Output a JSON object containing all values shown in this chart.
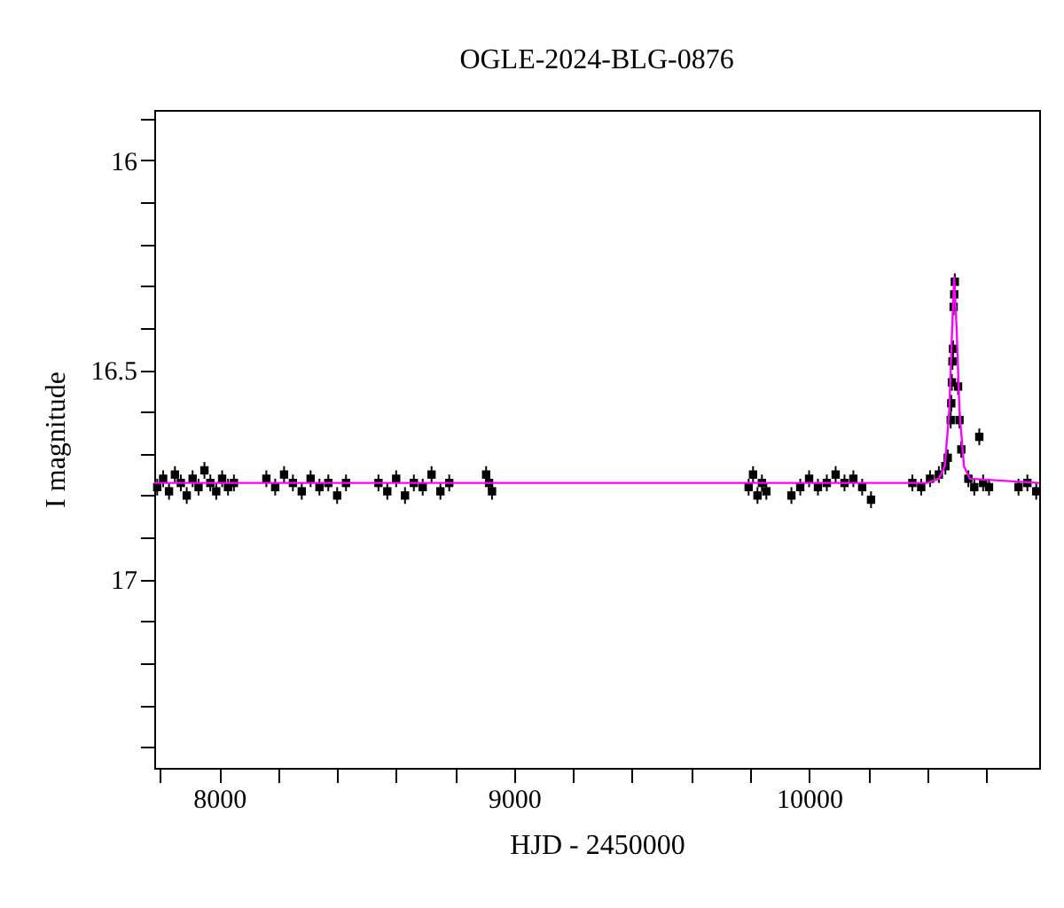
{
  "chart_data": {
    "type": "scatter",
    "title": "OGLE-2024-BLG-0876",
    "xlabel": "HJD - 2450000",
    "ylabel": "I magnitude",
    "xlim": [
      7780,
      10780
    ],
    "ylim": [
      17.45,
      15.88
    ],
    "xticks": [
      {
        "value": 7800,
        "label": null
      },
      8000,
      {
        "value": 8200,
        "label": null
      },
      {
        "value": 8400,
        "label": null
      },
      {
        "value": 8600,
        "label": null
      },
      {
        "value": 8800,
        "label": null
      },
      9000,
      {
        "value": 9200,
        "label": null
      },
      {
        "value": 9400,
        "label": null
      },
      {
        "value": 9600,
        "label": null
      },
      {
        "value": 9800,
        "label": null
      },
      10000,
      {
        "value": 10200,
        "label": null
      },
      {
        "value": 10400,
        "label": null
      },
      {
        "value": 10600,
        "label": null
      }
    ],
    "yticks": [
      {
        "value": 15.9,
        "label": null
      },
      16,
      {
        "value": 16.1,
        "label": null
      },
      {
        "value": 16.2,
        "label": null
      },
      {
        "value": 16.3,
        "label": null
      },
      {
        "value": 16.4,
        "label": null
      },
      16.5,
      {
        "value": 16.6,
        "label": null
      },
      {
        "value": 16.7,
        "label": null
      },
      {
        "value": 16.8,
        "label": null
      },
      {
        "value": 16.9,
        "label": null
      },
      17,
      {
        "value": 17.1,
        "label": null
      },
      {
        "value": 17.2,
        "label": null
      },
      {
        "value": 17.3,
        "label": null
      },
      {
        "value": 17.4,
        "label": null
      }
    ],
    "grid": false,
    "series": [
      {
        "color": "#000000",
        "marker": "square",
        "x": [
          7790,
          7810,
          7830,
          7850,
          7870,
          7890,
          7910,
          7930,
          7950,
          7970,
          7990,
          8010,
          8030,
          8050,
          8160,
          8190,
          8220,
          8250,
          8280,
          8310,
          8340,
          8370,
          8400,
          8430,
          8540,
          8570,
          8600,
          8630,
          8660,
          8690,
          8720,
          8750,
          8780,
          8905,
          8915,
          8925,
          9795,
          9810,
          9825,
          9840,
          9855,
          9940,
          9970,
          10000,
          10030,
          10060,
          10090,
          10120,
          10150,
          10180,
          10210,
          10350,
          10380,
          10410,
          10440,
          10462,
          10470,
          10480,
          10482,
          10484,
          10486,
          10488,
          10490,
          10492,
          10494,
          10505,
          10510,
          10516,
          10540,
          10560,
          10577,
          10590,
          10610,
          10710,
          10740,
          10770
        ],
        "values": [
          16.78,
          16.76,
          16.79,
          16.75,
          16.77,
          16.8,
          16.76,
          16.78,
          16.74,
          16.77,
          16.79,
          16.76,
          16.78,
          16.77,
          16.76,
          16.78,
          16.75,
          16.77,
          16.79,
          16.76,
          16.78,
          16.77,
          16.8,
          16.77,
          16.77,
          16.79,
          16.76,
          16.8,
          16.77,
          16.78,
          16.75,
          16.79,
          16.77,
          16.75,
          16.77,
          16.79,
          16.78,
          16.75,
          16.8,
          16.77,
          16.79,
          16.8,
          16.78,
          16.76,
          16.78,
          16.77,
          16.75,
          16.77,
          16.76,
          16.78,
          16.81,
          16.77,
          16.78,
          16.76,
          16.75,
          16.73,
          16.71,
          16.62,
          16.58,
          16.53,
          16.48,
          16.45,
          16.35,
          16.32,
          16.29,
          16.54,
          16.62,
          16.69,
          16.76,
          16.78,
          16.66,
          16.77,
          16.78,
          16.78,
          16.77,
          16.79
        ],
        "errors": [
          0.02,
          0.02,
          0.02,
          0.02,
          0.02,
          0.02,
          0.02,
          0.02,
          0.02,
          0.02,
          0.02,
          0.02,
          0.02,
          0.02,
          0.02,
          0.02,
          0.02,
          0.02,
          0.02,
          0.02,
          0.02,
          0.02,
          0.02,
          0.02,
          0.02,
          0.02,
          0.02,
          0.02,
          0.02,
          0.02,
          0.02,
          0.02,
          0.02,
          0.02,
          0.02,
          0.02,
          0.02,
          0.02,
          0.02,
          0.02,
          0.02,
          0.02,
          0.02,
          0.02,
          0.02,
          0.02,
          0.02,
          0.02,
          0.02,
          0.02,
          0.02,
          0.02,
          0.02,
          0.02,
          0.02,
          0.02,
          0.02,
          0.02,
          0.02,
          0.02,
          0.02,
          0.02,
          0.02,
          0.02,
          0.02,
          0.02,
          0.02,
          0.02,
          0.02,
          0.02,
          0.02,
          0.02,
          0.02,
          0.02,
          0.02,
          0.02
        ]
      },
      {
        "type": "line",
        "color": "#ff00ff",
        "x": [
          7780,
          10400,
          10440,
          10460,
          10475,
          10485,
          10492,
          10500,
          10510,
          10525,
          10545,
          10780
        ],
        "values": [
          16.77,
          16.77,
          16.76,
          16.73,
          16.6,
          16.4,
          16.28,
          16.4,
          16.6,
          16.73,
          16.76,
          16.77
        ]
      }
    ]
  }
}
